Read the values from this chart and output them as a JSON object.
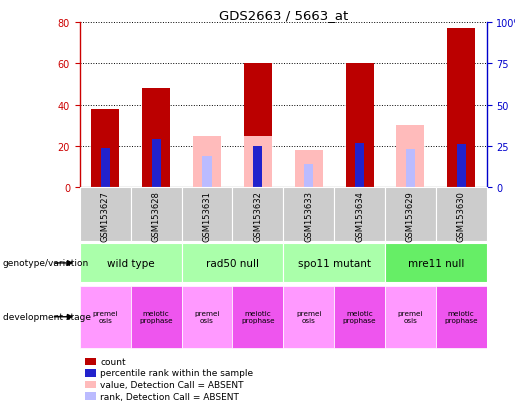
{
  "title": "GDS2663 / 5663_at",
  "samples": [
    "GSM153627",
    "GSM153628",
    "GSM153631",
    "GSM153632",
    "GSM153633",
    "GSM153634",
    "GSM153629",
    "GSM153630"
  ],
  "count_values": [
    38,
    48,
    null,
    60,
    null,
    60,
    null,
    77
  ],
  "rank_values": [
    24,
    29,
    null,
    25,
    null,
    27,
    null,
    26
  ],
  "absent_value_values": [
    null,
    null,
    25,
    25,
    18,
    null,
    30,
    null
  ],
  "absent_rank_values": [
    null,
    null,
    19,
    null,
    14,
    null,
    23,
    null
  ],
  "ylim_left": [
    0,
    80
  ],
  "ylim_right": [
    0,
    100
  ],
  "yticks_left": [
    0,
    20,
    40,
    60,
    80
  ],
  "yticks_right": [
    0,
    25,
    50,
    75,
    100
  ],
  "yticklabels_right": [
    "0",
    "25",
    "50",
    "75",
    "100%"
  ],
  "count_color": "#bb0000",
  "rank_color": "#2222cc",
  "absent_value_color": "#ffbbbb",
  "absent_rank_color": "#bbbbff",
  "left_axis_color": "#cc0000",
  "right_axis_color": "#0000cc",
  "genotype_groups": [
    {
      "label": "wild type",
      "cols": [
        0,
        1
      ],
      "color": "#aaffaa"
    },
    {
      "label": "rad50 null",
      "cols": [
        2,
        3
      ],
      "color": "#aaffaa"
    },
    {
      "label": "spo11 mutant",
      "cols": [
        4,
        5
      ],
      "color": "#aaffaa"
    },
    {
      "label": "mre11 null",
      "cols": [
        6,
        7
      ],
      "color": "#66ee66"
    }
  ],
  "dev_stage_labels": [
    "premei\nosis",
    "meiotic\nprophase",
    "premei\nosis",
    "meiotic\nprophase",
    "premei\nosis",
    "meiotic\nprophase",
    "premei\nosis",
    "meiotic\nprophase"
  ],
  "dev_stage_colors_light": "#ff99ff",
  "dev_stage_colors_dark": "#ee55ee",
  "legend_items": [
    {
      "label": "count",
      "color": "#bb0000"
    },
    {
      "label": "percentile rank within the sample",
      "color": "#2222cc"
    },
    {
      "label": "value, Detection Call = ABSENT",
      "color": "#ffbbbb"
    },
    {
      "label": "rank, Detection Call = ABSENT",
      "color": "#bbbbff"
    }
  ]
}
